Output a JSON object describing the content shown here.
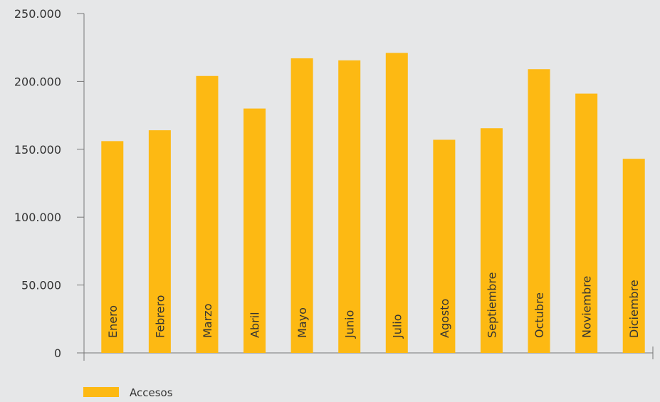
{
  "chart_data": {
    "type": "bar",
    "categories": [
      "Enero",
      "Febrero",
      "Marzo",
      "Abril",
      "Mayo",
      "Junio",
      "Julio",
      "Agosto",
      "Septiembre",
      "Octubre",
      "Noviembre",
      "Diciembre"
    ],
    "series": [
      {
        "name": "Accesos",
        "values": [
          156000,
          164000,
          204000,
          180000,
          217000,
          215500,
          221000,
          157000,
          165500,
          209000,
          191000,
          143000
        ]
      }
    ],
    "ylim": [
      0,
      250000
    ],
    "yticks": [
      0,
      50000,
      100000,
      150000,
      200000,
      250000
    ],
    "ytick_labels": [
      "0",
      "50.000",
      "100.000",
      "150.000",
      "200.000",
      "250.000"
    ],
    "grid": false,
    "legend_position": "bottom-left",
    "category_labels_placement": "inside-bars-vertical",
    "colors": {
      "background": "#e6e7e8",
      "bar": "#fdb913",
      "axis": "#777777",
      "text": "#333333"
    }
  }
}
